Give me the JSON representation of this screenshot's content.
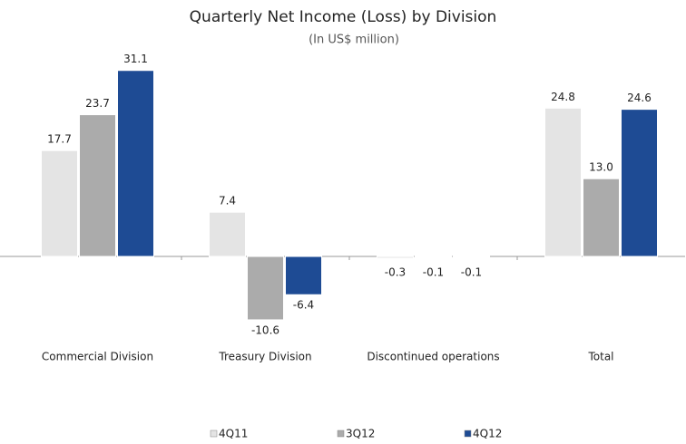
{
  "chart_data": {
    "type": "bar",
    "title": "Quarterly Net Income (Loss) by Division",
    "subtitle": "(In US$ million)",
    "categories": [
      "Commercial Division",
      "Treasury Division",
      "Discontinued operations",
      "Total"
    ],
    "series": [
      {
        "name": "4Q11",
        "color": "#e4e4e4",
        "values": [
          17.7,
          7.4,
          -0.3,
          24.8
        ],
        "value_labels": [
          "17.7",
          "7.4",
          "-0.3",
          "24.8"
        ]
      },
      {
        "name": "3Q12",
        "color": "#ababab",
        "values": [
          23.7,
          -10.6,
          -0.1,
          13.0
        ],
        "value_labels": [
          "23.7",
          "-10.6",
          "-0.1",
          "13.0"
        ]
      },
      {
        "name": "4Q12",
        "color": "#1e4b94",
        "values": [
          31.1,
          -6.4,
          -0.1,
          24.6
        ],
        "value_labels": [
          "31.1",
          "-6.4",
          "-0.1",
          "24.6"
        ]
      }
    ],
    "ylim": [
      -15,
      35
    ],
    "legend": "bottom"
  }
}
